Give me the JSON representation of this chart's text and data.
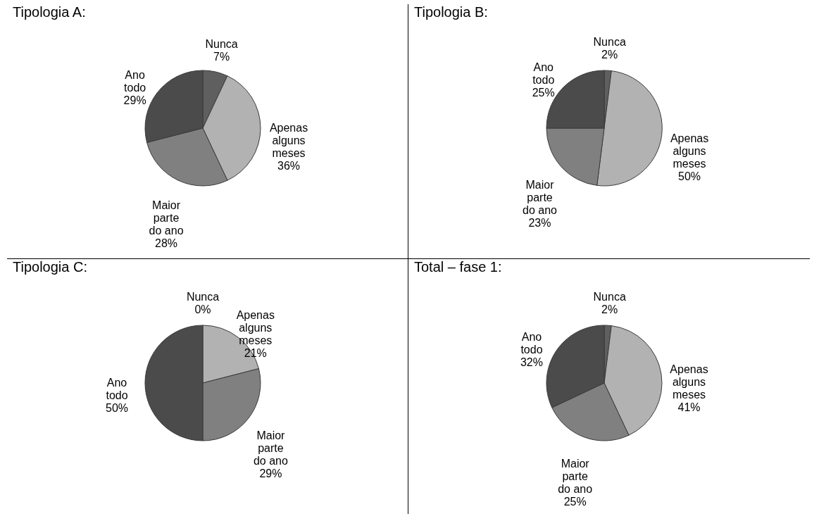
{
  "chart_data": [
    {
      "type": "pie",
      "title": "Tipologia A:",
      "categories": [
        "Nunca",
        "Apenas alguns meses",
        "Maior parte do ano",
        "Ano todo"
      ],
      "values": [
        7,
        36,
        28,
        29
      ],
      "value_labels": [
        "7%",
        "36%",
        "28%",
        "29%"
      ],
      "colors": [
        "#5f5f5f",
        "#b2b2b2",
        "#808080",
        "#4b4b4b"
      ],
      "legend": false
    },
    {
      "type": "pie",
      "title": "Tipologia B:",
      "categories": [
        "Nunca",
        "Apenas alguns meses",
        "Maior parte do ano",
        "Ano todo"
      ],
      "values": [
        2,
        50,
        23,
        25
      ],
      "value_labels": [
        "2%",
        "50%",
        "23%",
        "25%"
      ],
      "colors": [
        "#5f5f5f",
        "#b2b2b2",
        "#808080",
        "#4b4b4b"
      ],
      "legend": false
    },
    {
      "type": "pie",
      "title": "Tipologia C:",
      "categories": [
        "Nunca",
        "Apenas alguns meses",
        "Maior parte do ano",
        "Ano todo"
      ],
      "values": [
        0,
        21,
        29,
        50
      ],
      "value_labels": [
        "0%",
        "21%",
        "29%",
        "50%"
      ],
      "colors": [
        "#5f5f5f",
        "#b2b2b2",
        "#808080",
        "#4b4b4b"
      ],
      "legend": false
    },
    {
      "type": "pie",
      "title": "Total – fase 1:",
      "categories": [
        "Nunca",
        "Apenas alguns meses",
        "Maior parte do ano",
        "Ano todo"
      ],
      "values": [
        2,
        41,
        25,
        32
      ],
      "value_labels": [
        "2%",
        "41%",
        "25%",
        "32%"
      ],
      "colors": [
        "#5f5f5f",
        "#b2b2b2",
        "#808080",
        "#4b4b4b"
      ],
      "legend": false
    }
  ]
}
